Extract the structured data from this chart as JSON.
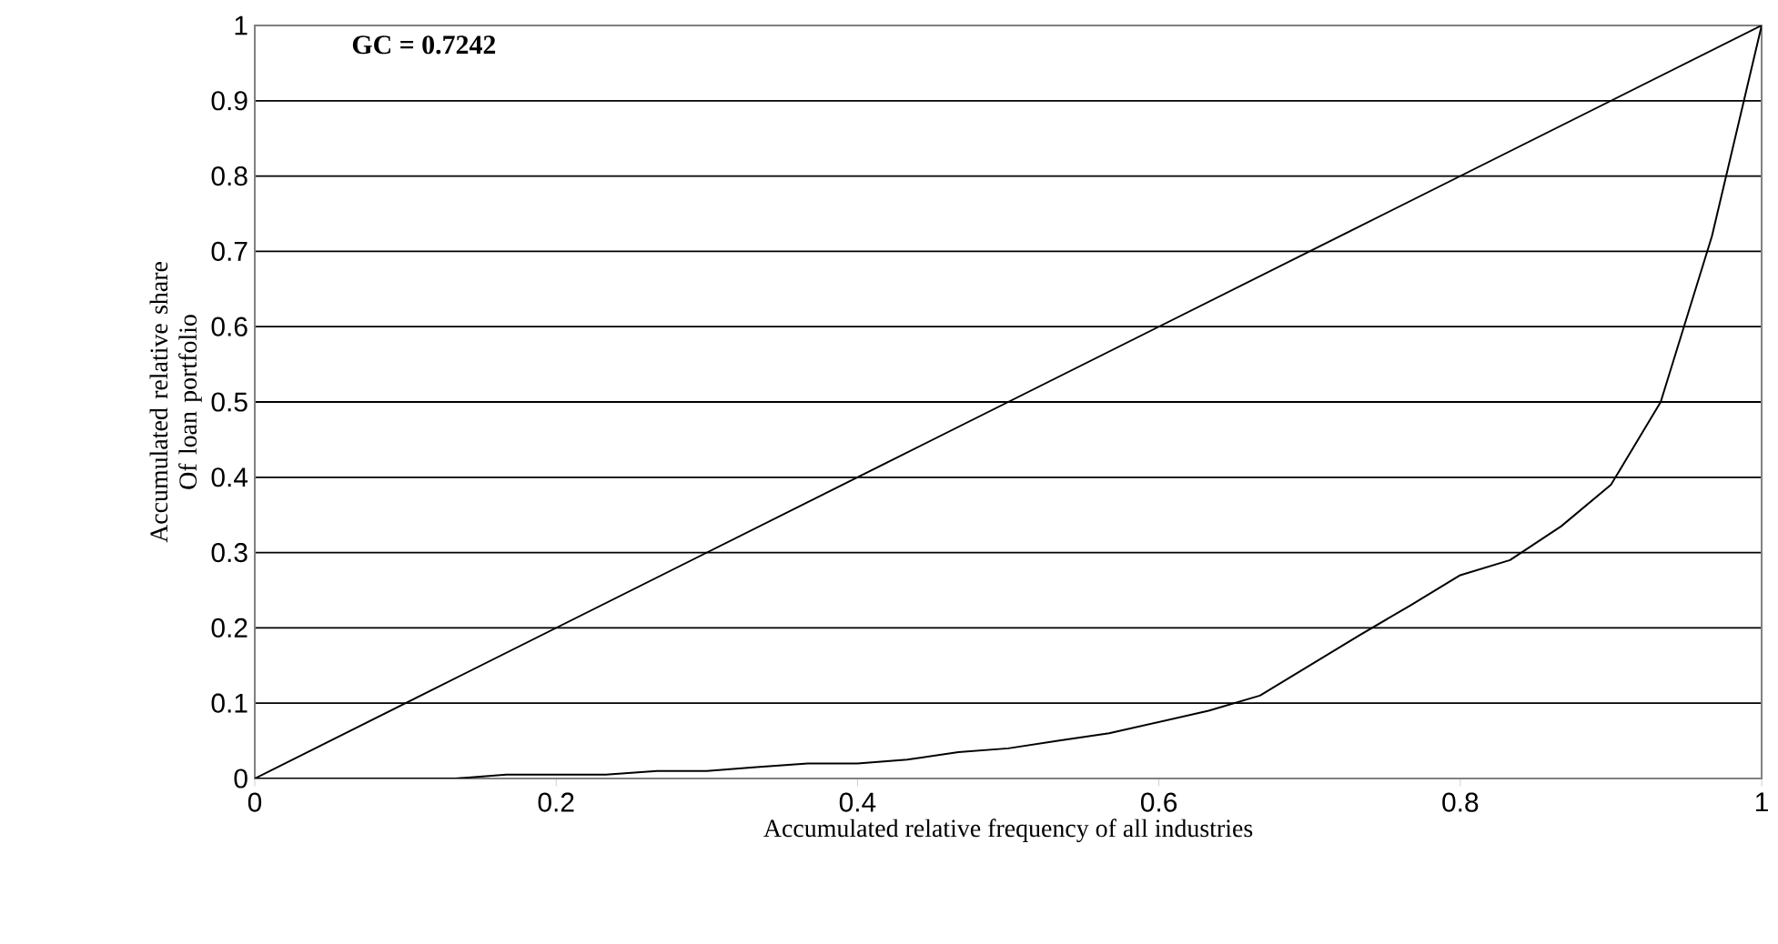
{
  "chart_data": {
    "type": "line",
    "xlabel": "Accumulated relative frequency of all industries",
    "ylabel": "Accumulated relative share\nOf loan portfolio",
    "annotations": [
      "GC = 0.7242"
    ],
    "series": [
      {
        "color": "#000000",
        "x": [
          0,
          1
        ],
        "values": [
          0,
          1
        ]
      },
      {
        "color": "#000000",
        "x": [
          0,
          0.033,
          0.067,
          0.1,
          0.133,
          0.167,
          0.2,
          0.233,
          0.267,
          0.3,
          0.333,
          0.367,
          0.4,
          0.433,
          0.467,
          0.5,
          0.533,
          0.567,
          0.6,
          0.633,
          0.667,
          0.7,
          0.733,
          0.767,
          0.8,
          0.833,
          0.867,
          0.9,
          0.933,
          0.967,
          1
        ],
        "values": [
          0,
          0,
          0,
          0,
          0,
          0.005,
          0.005,
          0.005,
          0.01,
          0.01,
          0.015,
          0.02,
          0.02,
          0.025,
          0.035,
          0.04,
          0.05,
          0.06,
          0.075,
          0.09,
          0.11,
          0.15,
          0.19,
          0.23,
          0.27,
          0.29,
          0.335,
          0.39,
          0.5,
          0.72,
          1
        ]
      }
    ],
    "xlim": [
      0,
      1
    ],
    "ylim": [
      0,
      1
    ],
    "xticks": [
      0,
      0.2,
      0.4,
      0.6,
      0.8,
      1
    ],
    "yticks": [
      0,
      0.1,
      0.2,
      0.3,
      0.4,
      0.5,
      0.6,
      0.7,
      0.8,
      0.9,
      1
    ],
    "grid": "y",
    "marker": "none",
    "line_style": "solid"
  }
}
